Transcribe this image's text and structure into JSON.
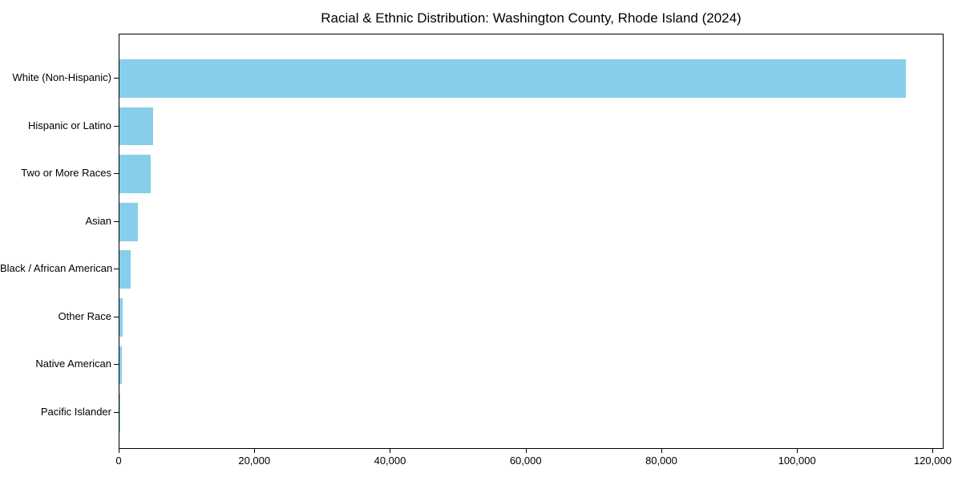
{
  "chart_data": {
    "type": "bar",
    "orientation": "horizontal",
    "title": "Racial & Ethnic Distribution: Washington County, Rhode Island (2024)",
    "categories": [
      "White (Non-Hispanic)",
      "Hispanic or Latino",
      "Two or More Races",
      "Asian",
      "Black / African American",
      "Other Race",
      "Native American",
      "Pacific Islander"
    ],
    "values": [
      115900,
      4960,
      4580,
      2680,
      1620,
      470,
      390,
      30
    ],
    "xlabel": "",
    "ylabel": "",
    "xlim": [
      0,
      121600
    ],
    "xticks": [
      0,
      20000,
      40000,
      60000,
      80000,
      100000,
      120000
    ],
    "xtick_labels": [
      "0",
      "20,000",
      "40,000",
      "60,000",
      "80,000",
      "100,000",
      "120,000"
    ],
    "bar_color": "#87CEEB",
    "grid": false,
    "legend": null,
    "background_color": "#ffffff",
    "axis_color": "#000000"
  }
}
